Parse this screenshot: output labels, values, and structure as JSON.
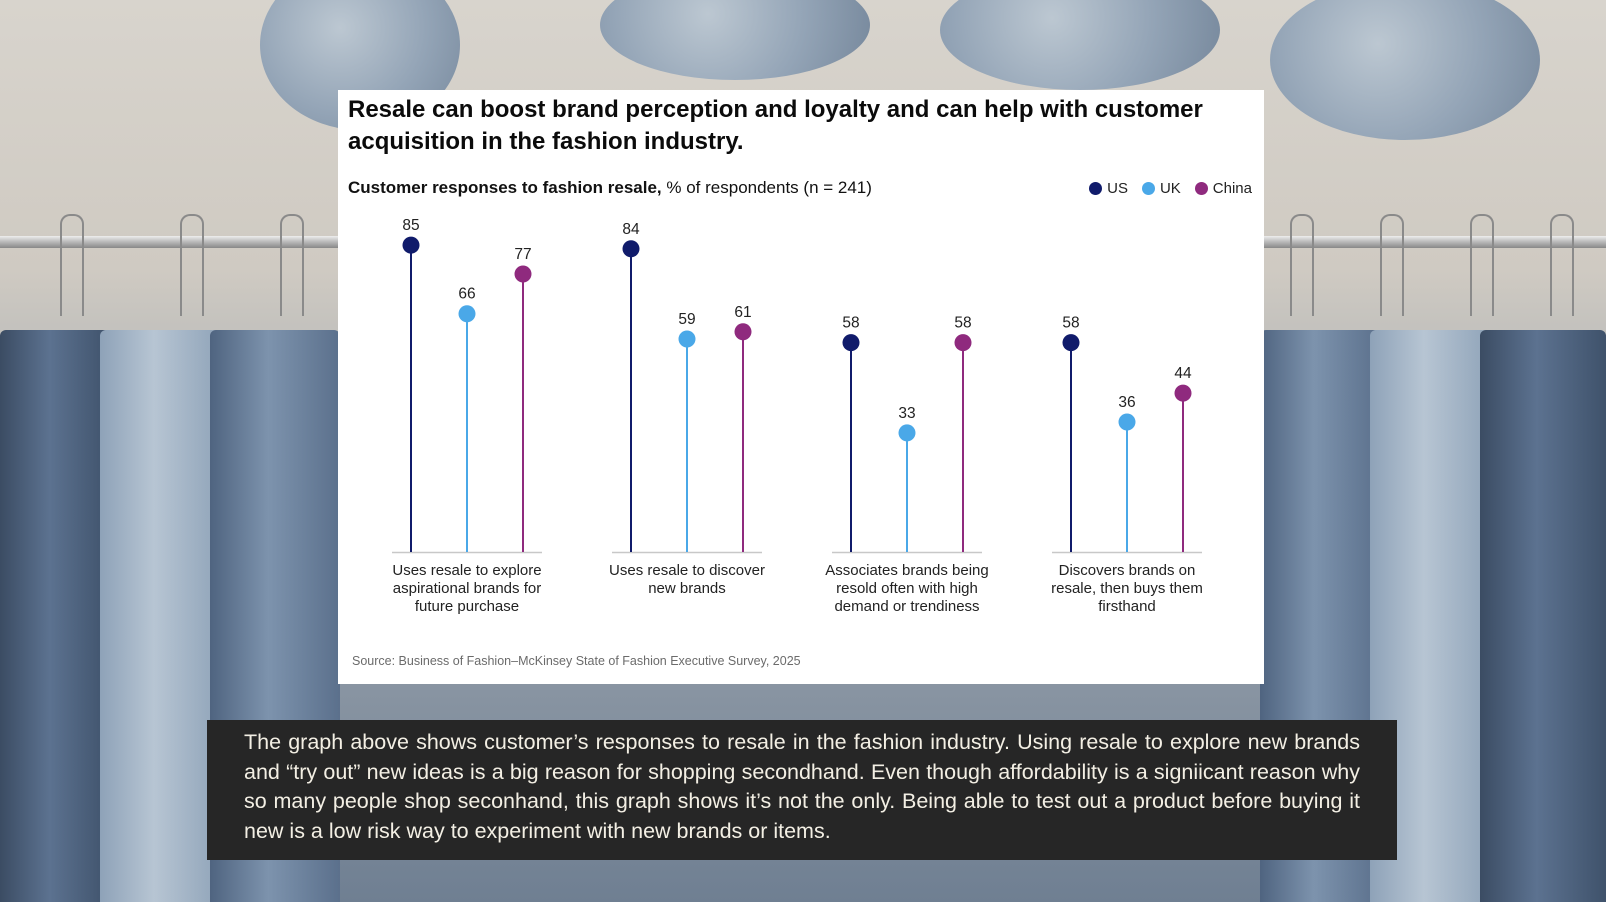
{
  "title": "Resale can boost brand perception and loyalty and can help with customer acquisition in the fashion industry.",
  "subtitle_bold": "Customer responses to fashion resale,",
  "subtitle_rest": " % of respondents (n = 241)",
  "source": "Source: Business of Fashion–McKinsey State of Fashion Executive Survey, 2025",
  "caption": "The graph above shows customer’s responses to resale in the fashion industry. Using resale to explore new brands and “try out” new ideas is a big reason for shopping secondhand. Even though affordability is a signiicant reason why so many people shop seconhand, this graph shows it’s not the only. Being able to test out a product before buying it new is a low risk way to experiment with new brands or items.",
  "colors": {
    "US": "#101b6b",
    "UK": "#4aa8e8",
    "China": "#8f2a7e"
  },
  "chart_data": {
    "type": "lollipop",
    "categories": [
      "Uses resale to explore aspirational brands for future purchase",
      "Uses resale to discover new brands",
      "Associates brands being resold often with high demand or trendiness",
      "Discovers brands on resale, then buys them firsthand"
    ],
    "category_lines": [
      [
        "Uses resale to explore",
        "aspirational brands for",
        "future purchase"
      ],
      [
        "Uses resale to discover",
        "new brands"
      ],
      [
        "Associates brands being",
        "resold often with high",
        "demand or trendiness"
      ],
      [
        "Discovers brands on",
        "resale, then buys them",
        "firsthand"
      ]
    ],
    "series": [
      {
        "name": "US",
        "values": [
          85,
          84,
          58,
          58
        ]
      },
      {
        "name": "UK",
        "values": [
          66,
          59,
          33,
          36
        ]
      },
      {
        "name": "China",
        "values": [
          77,
          61,
          58,
          44
        ]
      }
    ],
    "ylim": [
      0,
      100
    ],
    "legend_position": "top-right",
    "grid": false
  }
}
